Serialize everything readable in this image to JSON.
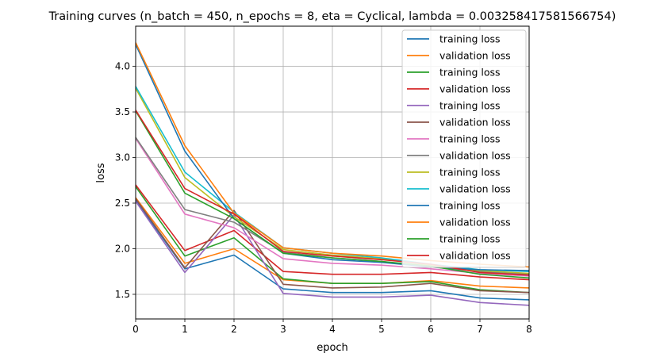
{
  "chart_data": {
    "type": "line",
    "title": "Training curves (n_batch = 450, n_epochs = 8, eta = Cyclical, lambda = 0.003258417581566754)",
    "xlabel": "epoch",
    "ylabel": "loss",
    "xlim": [
      0,
      8
    ],
    "ylim": [
      1.23,
      4.44
    ],
    "xticks": [
      "0",
      "1",
      "2",
      "3",
      "4",
      "5",
      "6",
      "7",
      "8"
    ],
    "yticks": [
      "1.5",
      "2.0",
      "2.5",
      "3.0",
      "3.5",
      "4.0"
    ],
    "grid": true,
    "legend_position": "upper-right",
    "x": [
      0,
      1,
      2,
      3,
      4,
      5,
      6,
      7,
      8
    ],
    "series": [
      {
        "name": "training loss",
        "color": "#1f77b4",
        "values": [
          2.53,
          1.78,
          1.93,
          1.56,
          1.52,
          1.52,
          1.54,
          1.46,
          1.44
        ]
      },
      {
        "name": "validation loss",
        "color": "#ff7f0e",
        "values": [
          2.56,
          1.84,
          2.0,
          1.66,
          1.62,
          1.62,
          1.65,
          1.59,
          1.57
        ]
      },
      {
        "name": "training loss",
        "color": "#2ca02c",
        "values": [
          2.68,
          1.92,
          2.12,
          1.67,
          1.62,
          1.62,
          1.64,
          1.55,
          1.52
        ]
      },
      {
        "name": "validation loss",
        "color": "#d62728",
        "values": [
          2.7,
          1.98,
          2.2,
          1.75,
          1.72,
          1.72,
          1.74,
          1.69,
          1.66
        ]
      },
      {
        "name": "training loss",
        "color": "#9467bd",
        "values": [
          2.52,
          1.74,
          2.37,
          1.51,
          1.47,
          1.47,
          1.49,
          1.41,
          1.38
        ]
      },
      {
        "name": "validation loss",
        "color": "#8c564b",
        "values": [
          2.55,
          1.79,
          2.42,
          1.61,
          1.57,
          1.58,
          1.62,
          1.54,
          1.52
        ]
      },
      {
        "name": "training loss",
        "color": "#e377c2",
        "values": [
          3.21,
          2.38,
          2.23,
          1.89,
          1.84,
          1.82,
          1.78,
          1.73,
          1.7
        ]
      },
      {
        "name": "validation loss",
        "color": "#7f7f7f",
        "values": [
          3.22,
          2.43,
          2.29,
          1.96,
          1.9,
          1.86,
          1.8,
          1.75,
          1.72
        ]
      },
      {
        "name": "training loss",
        "color": "#bcbd22",
        "values": [
          3.76,
          2.78,
          2.35,
          1.99,
          1.93,
          1.89,
          1.82,
          1.76,
          1.73
        ]
      },
      {
        "name": "validation loss",
        "color": "#17becf",
        "values": [
          3.78,
          2.84,
          2.4,
          2.01,
          1.95,
          1.9,
          1.83,
          1.77,
          1.75
        ]
      },
      {
        "name": "training loss",
        "color": "#1f77b4",
        "values": [
          4.24,
          3.07,
          2.33,
          1.95,
          1.88,
          1.85,
          1.8,
          1.77,
          1.76
        ]
      },
      {
        "name": "validation loss",
        "color": "#ff7f0e",
        "values": [
          4.26,
          3.13,
          2.39,
          2.01,
          1.95,
          1.92,
          1.87,
          1.83,
          1.8
        ]
      },
      {
        "name": "training loss",
        "color": "#2ca02c",
        "values": [
          3.51,
          2.61,
          2.33,
          1.95,
          1.9,
          1.86,
          1.81,
          1.72,
          1.68
        ]
      },
      {
        "name": "validation loss",
        "color": "#d62728",
        "values": [
          3.52,
          2.66,
          2.38,
          1.97,
          1.92,
          1.88,
          1.83,
          1.74,
          1.71
        ]
      }
    ]
  }
}
